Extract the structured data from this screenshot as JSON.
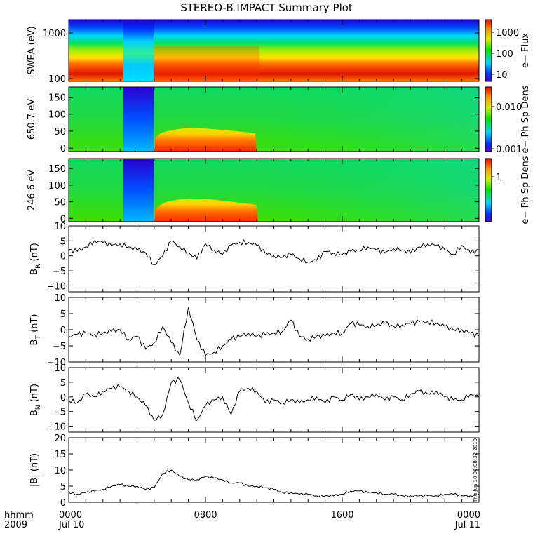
{
  "title": "STEREO-B IMPACT Summary Plot",
  "bottom_left": {
    "line1": "hhmm",
    "line2": "2009"
  },
  "stamp": "Thu Jun 10 06:08:32 2010",
  "x_axis": {
    "tick_labels": [
      "0000",
      "0800",
      "1600",
      "0000"
    ],
    "date_labels": [
      "Jul 10",
      "Jul 11"
    ],
    "range_hours": [
      0,
      24
    ]
  },
  "spectro_panels": [
    {
      "ylabel": "SWEA (eV)",
      "tick_labels": [
        "1000",
        "100"
      ],
      "cbar_label": "e− Flux",
      "cbar_ticks": [
        "1000",
        "100",
        "10"
      ]
    },
    {
      "ylabel": "650.7 eV",
      "tick_labels": [
        "150",
        "100",
        "50",
        "0"
      ],
      "cbar_label": "e− Ph Sp Dens",
      "cbar_ticks": [
        "0.010",
        "0.001"
      ]
    },
    {
      "ylabel": "246.6 eV",
      "tick_labels": [
        "150",
        "100",
        "50",
        "0"
      ],
      "cbar_label": "e− Ph Sp Dens",
      "cbar_ticks": [
        "1"
      ]
    }
  ],
  "mag_panels": [
    {
      "ylabel_main": "B",
      "ylabel_sub": "R",
      "ylabel_unit": " (nT)",
      "tick_labels": [
        "10",
        "5",
        "0",
        "−5",
        "−10"
      ]
    },
    {
      "ylabel_main": "B",
      "ylabel_sub": "T",
      "ylabel_unit": " (nT)",
      "tick_labels": [
        "10",
        "5",
        "0",
        "−5",
        "−10"
      ]
    },
    {
      "ylabel_main": "B",
      "ylabel_sub": "N",
      "ylabel_unit": " (nT)",
      "tick_labels": [
        "10",
        "5",
        "0",
        "−5",
        "−10"
      ]
    },
    {
      "ylabel_main": "|B|",
      "ylabel_sub": "",
      "ylabel_unit": " (nT)",
      "tick_labels": [
        "20",
        "15",
        "10",
        "5",
        "0"
      ]
    }
  ],
  "chart_data": {
    "type": "line",
    "title": "STEREO-B IMPACT Summary Plot",
    "x_unit": "hours since 2009 Jul 10 0000",
    "xlim": [
      0,
      24
    ],
    "grid": false,
    "spectrograms": [
      {
        "ylabel": "SWEA (eV)",
        "ylim": [
          90,
          2000
        ],
        "scale": "log",
        "colorbar": {
          "label": "e− Flux",
          "scale": "log",
          "range": [
            3,
            4000
          ]
        }
      },
      {
        "ylabel": "650.7 eV",
        "ylim": [
          -10,
          180
        ],
        "colorbar": {
          "label": "e− Ph Sp Dens",
          "scale": "log",
          "range": [
            0.001,
            0.03
          ]
        }
      },
      {
        "ylabel": "246.6 eV",
        "ylim": [
          -10,
          180
        ],
        "colorbar": {
          "label": "e− Ph Sp Dens",
          "scale": "log",
          "range": [
            0.3,
            3
          ]
        }
      }
    ],
    "x": [
      0,
      0.5,
      1,
      1.5,
      2,
      2.5,
      3,
      3.5,
      4,
      4.5,
      5,
      5.5,
      6,
      6.5,
      7,
      7.5,
      8,
      8.5,
      9,
      9.5,
      10,
      10.5,
      11,
      11.5,
      12,
      12.5,
      13,
      13.5,
      14,
      14.5,
      15,
      15.5,
      16,
      16.5,
      17,
      17.5,
      18,
      18.5,
      19,
      19.5,
      20,
      20.5,
      21,
      21.5,
      22,
      22.5,
      23,
      23.5,
      24
    ],
    "series": [
      {
        "name": "B_R",
        "ylim": [
          -12,
          10
        ],
        "values": [
          2,
          1.5,
          3,
          5,
          4.5,
          3.5,
          4,
          3,
          2,
          1,
          -3,
          0,
          5,
          3,
          1,
          -1,
          4,
          2,
          0.5,
          3.5,
          4.5,
          4.5,
          3.5,
          1,
          0,
          -0.5,
          0.5,
          -1,
          -2,
          -1.5,
          1.5,
          1,
          0.5,
          1.5,
          2,
          3,
          2,
          1,
          2.5,
          2,
          1,
          3,
          4,
          3.5,
          2,
          0.5,
          3.5,
          1,
          2
        ]
      },
      {
        "name": "B_T",
        "ylim": [
          -10,
          10
        ],
        "values": [
          -2,
          -1.5,
          -1,
          -1.5,
          -1,
          -0.5,
          0,
          -3,
          -2,
          -6,
          -4,
          1,
          -4,
          -8,
          7,
          -3,
          -8,
          -7,
          -5,
          -3,
          -2,
          -1,
          -2,
          -1.5,
          -1,
          -0.5,
          3,
          -2,
          -3,
          -2,
          -2,
          -1,
          -1,
          2,
          1.5,
          1,
          1.5,
          2,
          1,
          1.5,
          2,
          2.5,
          2.5,
          2,
          1,
          0,
          0,
          -1,
          -2
        ]
      },
      {
        "name": "B_N",
        "ylim": [
          -12,
          10
        ],
        "values": [
          -1,
          -2,
          1,
          0,
          2,
          3,
          3.5,
          2,
          0,
          -3,
          -8,
          -6,
          5,
          6,
          -2,
          -8,
          -3,
          -1,
          0,
          -6,
          2,
          3,
          2,
          -2,
          -1,
          -2,
          -1,
          -2,
          -1,
          0,
          -2,
          0,
          -1,
          1,
          -1,
          0,
          1,
          -1,
          0,
          -1,
          1,
          2,
          1,
          2,
          0,
          -1,
          -1,
          1,
          0
        ]
      },
      {
        "name": "|B|",
        "ylim": [
          0,
          20
        ],
        "values": [
          3,
          2.5,
          3,
          3.5,
          4,
          5,
          5.5,
          5,
          5,
          4,
          4.5,
          9,
          10,
          8,
          7,
          7,
          8,
          7.5,
          7,
          6,
          6,
          5,
          5,
          4.5,
          4,
          3,
          3,
          2.5,
          2.5,
          2,
          2,
          2,
          2.5,
          3.5,
          3.5,
          3,
          3,
          2.5,
          2.5,
          2,
          2,
          2,
          2,
          2,
          2.5,
          2.5,
          2,
          2,
          2.5
        ]
      }
    ]
  }
}
